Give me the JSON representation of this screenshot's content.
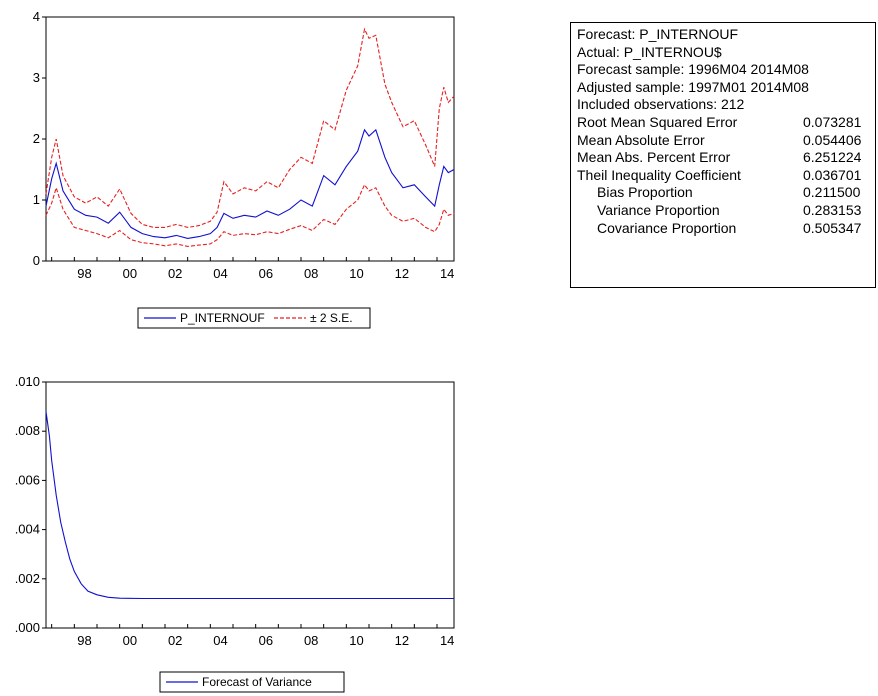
{
  "forecast_chart": {
    "legend": {
      "series": "P_INTERNOUF",
      "bands": "± 2 S.E."
    },
    "colors": {
      "series": "#1010d0",
      "bands": "#e82020"
    }
  },
  "variance_chart": {
    "legend": {
      "series": "Forecast of Variance"
    },
    "colors": {
      "series": "#1010d0"
    }
  },
  "stats": {
    "lines": [
      "Forecast: P_INTERNOUF",
      "Actual: P_INTERNOU$",
      "Forecast sample: 1996M04 2014M08",
      "Adjusted sample: 1997M01 2014M08",
      "Included observations: 212"
    ],
    "rows": [
      {
        "label": "Root Mean Squared Error",
        "value": "0.073281"
      },
      {
        "label": "Mean Absolute Error",
        "value": "0.054406"
      },
      {
        "label": "Mean Abs. Percent Error",
        "value": "6.251224"
      },
      {
        "label": "Theil Inequality Coefficient",
        "value": "0.036701"
      },
      {
        "label": "Bias Proportion",
        "value": "0.211500"
      },
      {
        "label": "Variance Proportion",
        "value": "0.283153"
      },
      {
        "label": "Covariance Proportion",
        "value": "0.505347"
      }
    ]
  },
  "chart_data": [
    {
      "type": "line",
      "xlim": [
        1996.75,
        2014.75
      ],
      "ylim": [
        0,
        4
      ],
      "y_ticks": [
        "0",
        "1",
        "2",
        "3",
        "4"
      ],
      "x_ticks": [
        {
          "x": 1998,
          "label": "98"
        },
        {
          "x": 2000,
          "label": "00"
        },
        {
          "x": 2002,
          "label": "02"
        },
        {
          "x": 2004,
          "label": "04"
        },
        {
          "x": 2006,
          "label": "06"
        },
        {
          "x": 2008,
          "label": "08"
        },
        {
          "x": 2010,
          "label": "10"
        },
        {
          "x": 2012,
          "label": "12"
        },
        {
          "x": 2014,
          "label": "14"
        }
      ],
      "x": [
        1996.75,
        1997.0,
        1997.2,
        1997.5,
        1998.0,
        1998.5,
        1999.0,
        1999.5,
        2000.0,
        2000.5,
        2001.0,
        2001.5,
        2002.0,
        2002.5,
        2003.0,
        2003.5,
        2004.0,
        2004.3,
        2004.6,
        2005.0,
        2005.5,
        2006.0,
        2006.5,
        2007.0,
        2007.5,
        2008.0,
        2008.5,
        2009.0,
        2009.5,
        2010.0,
        2010.5,
        2010.8,
        2011.0,
        2011.3,
        2011.7,
        2012.0,
        2012.5,
        2013.0,
        2013.5,
        2013.9,
        2014.1,
        2014.3,
        2014.5,
        2014.75
      ],
      "series": [
        {
          "name": "P_INTERNOUF",
          "color": "#1010d0",
          "dash": "",
          "values": [
            0.9,
            1.35,
            1.6,
            1.15,
            0.85,
            0.75,
            0.72,
            0.62,
            0.8,
            0.55,
            0.45,
            0.4,
            0.38,
            0.42,
            0.37,
            0.4,
            0.45,
            0.55,
            0.78,
            0.7,
            0.75,
            0.72,
            0.82,
            0.75,
            0.85,
            1.0,
            0.9,
            1.4,
            1.25,
            1.55,
            1.8,
            2.15,
            2.05,
            2.15,
            1.7,
            1.45,
            1.2,
            1.25,
            1.05,
            0.9,
            1.25,
            1.55,
            1.45,
            1.5
          ]
        },
        {
          "name": "± 2 S.E.",
          "color": "#e82020",
          "dash": "4,2",
          "values": [
            1.1,
            1.7,
            2.0,
            1.4,
            1.05,
            0.95,
            1.05,
            0.9,
            1.18,
            0.78,
            0.6,
            0.55,
            0.55,
            0.6,
            0.55,
            0.58,
            0.65,
            0.8,
            1.3,
            1.1,
            1.2,
            1.15,
            1.3,
            1.2,
            1.5,
            1.7,
            1.6,
            2.3,
            2.15,
            2.8,
            3.2,
            3.8,
            3.65,
            3.7,
            2.9,
            2.6,
            2.2,
            2.3,
            1.9,
            1.55,
            2.5,
            2.85,
            2.6,
            2.7
          ]
        },
        {
          "name": "± 2 S.E.",
          "color": "#e82020",
          "dash": "4,2",
          "values": [
            0.75,
            0.95,
            1.2,
            0.85,
            0.55,
            0.5,
            0.45,
            0.38,
            0.5,
            0.35,
            0.3,
            0.28,
            0.25,
            0.28,
            0.24,
            0.26,
            0.28,
            0.35,
            0.48,
            0.42,
            0.45,
            0.43,
            0.48,
            0.45,
            0.52,
            0.58,
            0.5,
            0.68,
            0.6,
            0.85,
            1.0,
            1.25,
            1.15,
            1.2,
            0.9,
            0.75,
            0.65,
            0.7,
            0.55,
            0.48,
            0.6,
            0.85,
            0.75,
            0.78
          ]
        }
      ]
    },
    {
      "type": "line",
      "xlim": [
        1996.75,
        2014.75
      ],
      "ylim": [
        0,
        0.01
      ],
      "y_ticks": [
        ".000",
        ".002",
        ".004",
        ".006",
        ".008",
        ".010"
      ],
      "x_ticks": [
        {
          "x": 1998,
          "label": "98"
        },
        {
          "x": 2000,
          "label": "00"
        },
        {
          "x": 2002,
          "label": "02"
        },
        {
          "x": 2004,
          "label": "04"
        },
        {
          "x": 2006,
          "label": "06"
        },
        {
          "x": 2008,
          "label": "08"
        },
        {
          "x": 2010,
          "label": "10"
        },
        {
          "x": 2012,
          "label": "12"
        },
        {
          "x": 2014,
          "label": "14"
        }
      ],
      "x": [
        1996.75,
        1996.9,
        1997.0,
        1997.2,
        1997.4,
        1997.6,
        1997.8,
        1998.0,
        1998.3,
        1998.6,
        1999.0,
        1999.5,
        2000.0,
        2001.0,
        2002.0,
        2004.0,
        2006.0,
        2008.0,
        2010.0,
        2012.0,
        2014.0,
        2014.75
      ],
      "series": [
        {
          "name": "Forecast of Variance",
          "color": "#1010d0",
          "dash": "",
          "values": [
            0.0088,
            0.0078,
            0.0068,
            0.0054,
            0.0043,
            0.0035,
            0.0028,
            0.0023,
            0.0018,
            0.0015,
            0.00135,
            0.00125,
            0.00121,
            0.0012,
            0.0012,
            0.0012,
            0.0012,
            0.0012,
            0.0012,
            0.0012,
            0.0012,
            0.0012
          ]
        }
      ]
    }
  ]
}
